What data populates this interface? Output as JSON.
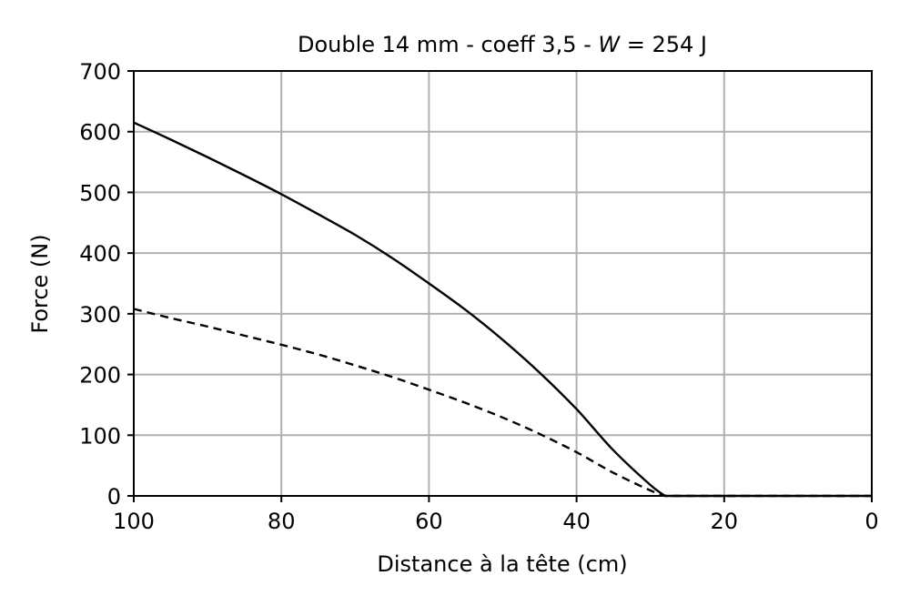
{
  "chart_data": {
    "type": "line",
    "title": {
      "prefix": "Double 14 mm - coeff 3,5 - ",
      "variable": "W",
      "suffix": " = 254 J"
    },
    "xlabel": "Distance à la tête (cm)",
    "ylabel": "Force (N)",
    "xlim": [
      100,
      0
    ],
    "ylim": [
      0,
      700
    ],
    "x_ticks": [
      100,
      80,
      60,
      40,
      20,
      0
    ],
    "y_ticks": [
      0,
      100,
      200,
      300,
      400,
      500,
      600,
      700
    ],
    "grid": true,
    "legend": "none",
    "series": [
      {
        "style": "solid",
        "color": "#000000",
        "x": [
          100,
          95,
          90,
          85,
          80,
          75,
          70,
          65,
          60,
          55,
          50,
          45,
          40,
          35,
          30,
          28,
          20,
          10,
          0
        ],
        "y": [
          615,
          587,
          558,
          528,
          497,
          464,
          430,
          392,
          350,
          306,
          257,
          203,
          143,
          75,
          18,
          0,
          0,
          0,
          0
        ]
      },
      {
        "style": "dashed",
        "color": "#000000",
        "x": [
          100,
          95,
          90,
          85,
          80,
          75,
          70,
          65,
          60,
          55,
          50,
          45,
          40,
          35,
          30,
          28,
          20,
          10,
          0
        ],
        "y": [
          308,
          293,
          279,
          264,
          249,
          233,
          215,
          196,
          175,
          153,
          129,
          102,
          72,
          38,
          9,
          0,
          0,
          0,
          0
        ]
      }
    ]
  }
}
